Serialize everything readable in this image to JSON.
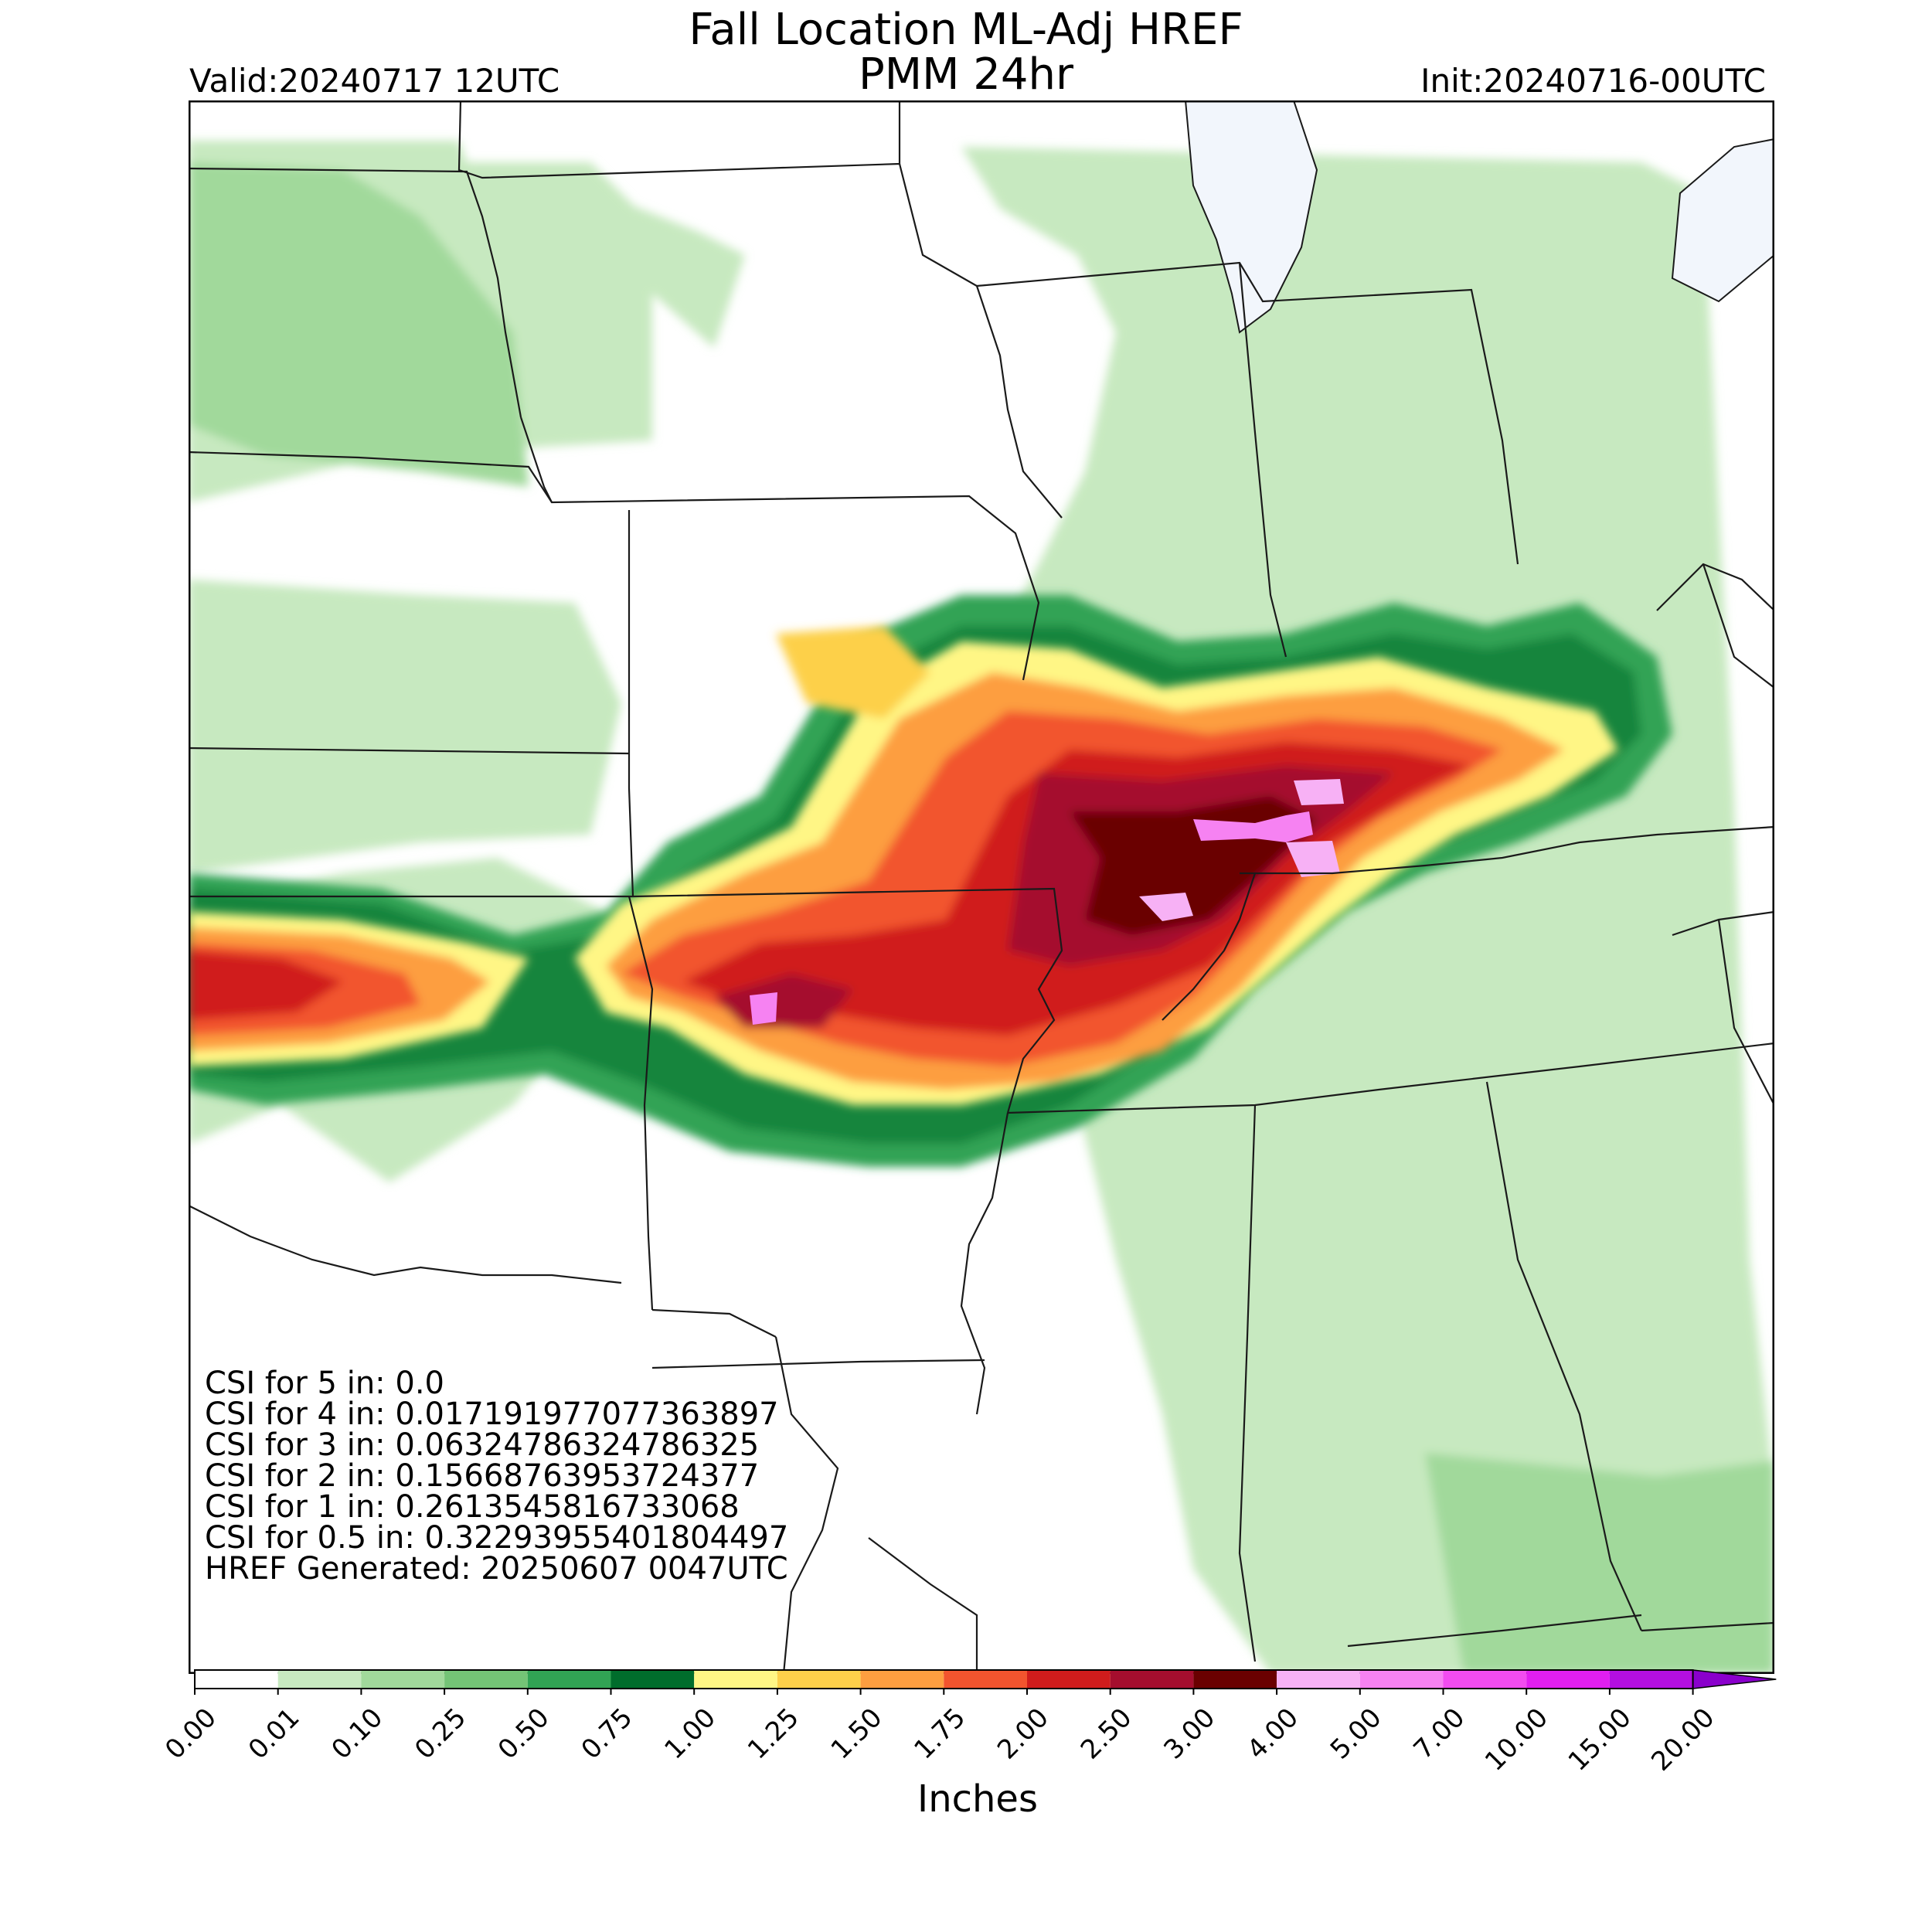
{
  "header": {
    "title": "Fall Location ML-Adj HREF",
    "subtitle": "PMM 24hr",
    "valid": "Valid:20240717 12UTC",
    "init": "Init:20240716-00UTC"
  },
  "stats": [
    "CSI for 5 in: 0.0",
    "CSI for 4 in: 0.017191977077363897",
    "CSI for 3 in: 0.06324786324786325",
    "CSI for 2 in: 0.15668763953724377",
    "CSI for 1 in: 0.2613545816733068",
    "CSI for 0.5 in: 0.32293955401804497",
    "HREF Generated: 20250607 0047UTC"
  ],
  "colorbar": {
    "label": "Inches",
    "ticks": [
      "0.00",
      "0.01",
      "0.10",
      "0.25",
      "0.50",
      "0.75",
      "1.00",
      "1.25",
      "1.50",
      "1.75",
      "2.00",
      "2.50",
      "3.00",
      "4.00",
      "5.00",
      "7.00",
      "10.00",
      "15.00",
      "20.00"
    ],
    "colors": [
      "#ffffff",
      "#c7e9c0",
      "#a1d99b",
      "#74c476",
      "#31a354",
      "#006d2c",
      "#fff685",
      "#fdd04a",
      "#fd9e40",
      "#f2542e",
      "#d01c1c",
      "#a50e2e",
      "#6a0000",
      "#f7b1f5",
      "#f682f2",
      "#f24cf0",
      "#e11ff0",
      "#b30fe0",
      "#8a00cc"
    ]
  },
  "map": {
    "water_color": "#f2f6fc",
    "border_color": "#1a1a1a"
  }
}
